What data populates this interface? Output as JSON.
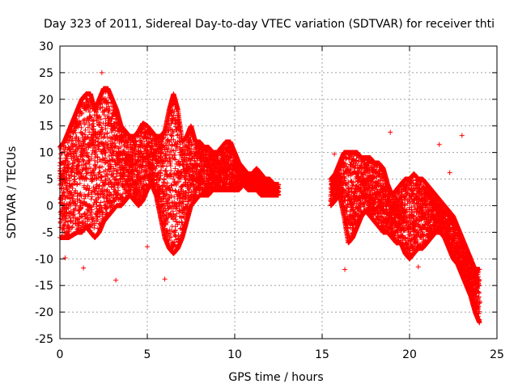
{
  "chart_data": {
    "type": "scatter",
    "title": "Day 323 of 2011, Sidereal Day-to-day VTEC variation (SDTVAR) for receiver thti",
    "xlabel": "GPS time / hours",
    "ylabel": "SDTVAR / TECUs",
    "xlim": [
      0,
      25
    ],
    "ylim": [
      -25,
      30
    ],
    "xticks": [
      0,
      5,
      10,
      15,
      20,
      25
    ],
    "yticks": [
      -25,
      -20,
      -15,
      -10,
      -5,
      0,
      5,
      10,
      15,
      20,
      25,
      30
    ],
    "grid": true,
    "marker": "+",
    "color": "#ff0000",
    "series": [
      {
        "name": "SDTVAR",
        "band_segments": [
          {
            "x": [
              0.0,
              0.25,
              0.5,
              0.75,
              1.0,
              1.25,
              1.5,
              1.75,
              2.0,
              2.25,
              2.5,
              2.75,
              3.0,
              3.25,
              3.5,
              3.75,
              4.0,
              4.25,
              4.5,
              4.75,
              5.0,
              5.25,
              5.5,
              5.75,
              6.0,
              6.25,
              6.5,
              6.75,
              7.0,
              7.25,
              7.5,
              7.75,
              8.0,
              8.25,
              8.5,
              8.75,
              9.0,
              9.25,
              9.5,
              9.75,
              10.0,
              10.25,
              10.5,
              10.75,
              11.0,
              11.25,
              11.5,
              11.75,
              12.0,
              12.25,
              12.5
            ],
            "lower": [
              -6,
              -6,
              -6,
              -5.5,
              -5,
              -5,
              -4,
              -5,
              -6,
              -5,
              -3,
              -2,
              -1,
              0,
              0,
              1,
              2,
              1,
              0,
              1,
              3,
              4,
              2,
              -2,
              -6,
              -8,
              -9,
              -8,
              -6,
              -3,
              0,
              1,
              2,
              2,
              2,
              3,
              3,
              3,
              3,
              3,
              3,
              3,
              4,
              3,
              3,
              3,
              2,
              2,
              2,
              2,
              2
            ],
            "upper": [
              11,
              12,
              14,
              16,
              18,
              20,
              21,
              21,
              18,
              20,
              22,
              22,
              20,
              18,
              15,
              14,
              13,
              13,
              14,
              15.5,
              15,
              14,
              13,
              13,
              14,
              18,
              21,
              18,
              12,
              13,
              15,
              12,
              12,
              11,
              11,
              10,
              10,
              11,
              12,
              12,
              10,
              8,
              7,
              6,
              6,
              7,
              6,
              5,
              5,
              4,
              4
            ]
          },
          {
            "x": [
              15.5,
              15.75,
              16.0,
              16.25,
              16.5,
              16.75,
              17.0,
              17.25,
              17.5,
              17.75,
              18.0,
              18.25,
              18.5,
              18.75,
              19.0,
              19.25,
              19.5,
              19.75,
              20.0,
              20.25,
              20.5,
              20.75,
              21.0,
              21.25,
              21.5,
              21.75,
              22.0,
              22.25,
              22.5,
              22.75,
              23.0,
              23.25,
              23.5,
              23.75,
              24.0
            ],
            "lower": [
              0,
              1,
              2,
              -2,
              -7,
              -6,
              -4,
              -2,
              -1,
              -2,
              -3,
              -4,
              -5,
              -5,
              -6,
              -7,
              -7,
              -9,
              -10,
              -9,
              -8,
              -8,
              -7,
              -6,
              -5,
              -5,
              -6,
              -8,
              -10,
              -11,
              -13,
              -15,
              -17,
              -20,
              -22
            ],
            "upper": [
              5,
              6,
              8,
              10,
              10,
              10,
              10,
              9,
              9,
              9,
              8,
              8,
              7,
              4,
              2,
              3,
              4,
              5,
              5,
              6,
              5,
              5,
              4,
              3,
              2,
              1,
              0,
              -1,
              -2,
              -4,
              -6,
              -8,
              -10,
              -12,
              -12
            ]
          }
        ],
        "outliers": [
          {
            "x": 0.3,
            "y": -9.8
          },
          {
            "x": 1.35,
            "y": -11.7
          },
          {
            "x": 2.4,
            "y": 25
          },
          {
            "x": 3.2,
            "y": -14
          },
          {
            "x": 6.0,
            "y": -13.8
          },
          {
            "x": 5.0,
            "y": -7.7
          },
          {
            "x": 15.7,
            "y": 9.7
          },
          {
            "x": 16.3,
            "y": -12
          },
          {
            "x": 18.9,
            "y": 13.8
          },
          {
            "x": 21.7,
            "y": 11.5
          },
          {
            "x": 22.3,
            "y": 6.2
          },
          {
            "x": 23.0,
            "y": 13.2
          },
          {
            "x": 20.5,
            "y": -11.5
          }
        ]
      }
    ]
  }
}
